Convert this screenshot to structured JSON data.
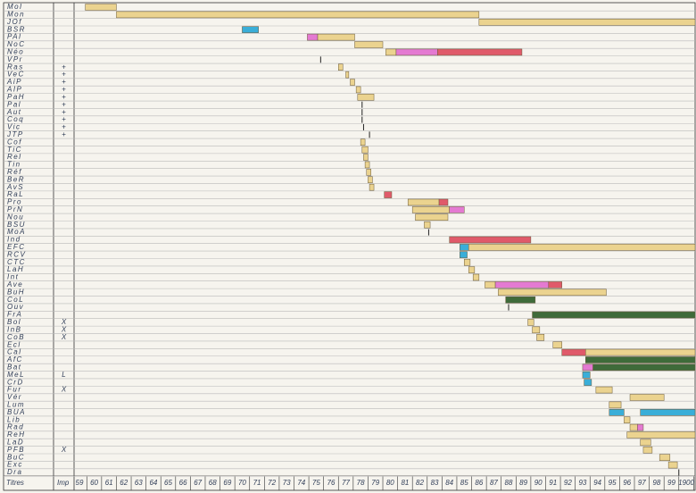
{
  "chart_data": {
    "type": "timeline",
    "row_header": "Titres",
    "imp_header": "Imp",
    "xlim": [
      1858.7,
      1900.6
    ],
    "xticks": [
      {
        "value": 1859,
        "label": "59"
      },
      {
        "value": 1860,
        "label": "60"
      },
      {
        "value": 1861,
        "label": "61"
      },
      {
        "value": 1862,
        "label": "62"
      },
      {
        "value": 1863,
        "label": "63"
      },
      {
        "value": 1864,
        "label": "64"
      },
      {
        "value": 1865,
        "label": "65"
      },
      {
        "value": 1866,
        "label": "66"
      },
      {
        "value": 1867,
        "label": "67"
      },
      {
        "value": 1868,
        "label": "68"
      },
      {
        "value": 1869,
        "label": "69"
      },
      {
        "value": 1870,
        "label": "70"
      },
      {
        "value": 1871,
        "label": "71"
      },
      {
        "value": 1872,
        "label": "72"
      },
      {
        "value": 1873,
        "label": "73"
      },
      {
        "value": 1874,
        "label": "74"
      },
      {
        "value": 1875,
        "label": "75"
      },
      {
        "value": 1876,
        "label": "76"
      },
      {
        "value": 1877,
        "label": "77"
      },
      {
        "value": 1878,
        "label": "78"
      },
      {
        "value": 1879,
        "label": "79"
      },
      {
        "value": 1880,
        "label": "80"
      },
      {
        "value": 1881,
        "label": "81"
      },
      {
        "value": 1882,
        "label": "82"
      },
      {
        "value": 1883,
        "label": "83"
      },
      {
        "value": 1884,
        "label": "84"
      },
      {
        "value": 1885,
        "label": "85"
      },
      {
        "value": 1886,
        "label": "86"
      },
      {
        "value": 1887,
        "label": "87"
      },
      {
        "value": 1888,
        "label": "88"
      },
      {
        "value": 1889,
        "label": "89"
      },
      {
        "value": 1890,
        "label": "90"
      },
      {
        "value": 1891,
        "label": "91"
      },
      {
        "value": 1892,
        "label": "92"
      },
      {
        "value": 1893,
        "label": "93"
      },
      {
        "value": 1894,
        "label": "94"
      },
      {
        "value": 1895,
        "label": "95"
      },
      {
        "value": 1896,
        "label": "96"
      },
      {
        "value": 1897,
        "label": "97"
      },
      {
        "value": 1898,
        "label": "98"
      },
      {
        "value": 1899,
        "label": "99"
      },
      1900
    ],
    "rows": [
      {
        "name": "Mol",
        "segments": [
          {
            "start": 1859.4,
            "end": 1861.5,
            "color": "#ebd38f"
          }
        ]
      },
      {
        "name": "Mon",
        "segments": [
          {
            "start": 1861.5,
            "end": 1886.0,
            "color": "#ebd38f"
          }
        ]
      },
      {
        "name": "JOf",
        "segments": [
          {
            "start": 1886.0,
            "end": 1900.6,
            "color": "#ebd38f"
          }
        ]
      },
      {
        "name": "BSR",
        "segments": [
          {
            "start": 1870.0,
            "end": 1871.1,
            "color": "#3aaed8"
          }
        ]
      },
      {
        "name": "PAl",
        "segments": [
          {
            "start": 1874.4,
            "end": 1875.1,
            "color": "#e47ad2"
          },
          {
            "start": 1875.1,
            "end": 1877.6,
            "color": "#ebd38f"
          }
        ]
      },
      {
        "name": "NoC",
        "segments": [
          {
            "start": 1877.6,
            "end": 1879.5,
            "color": "#ebd38f"
          }
        ]
      },
      {
        "name": "Néo",
        "segments": [
          {
            "start": 1879.7,
            "end": 1880.4,
            "color": "#ebd38f"
          },
          {
            "start": 1880.4,
            "end": 1883.2,
            "color": "#e47ad2"
          },
          {
            "start": 1883.2,
            "end": 1888.9,
            "color": "#e05a6a"
          }
        ]
      },
      {
        "name": "VPr",
        "segments": [
          {
            "start": 1875.3,
            "end": 1875.3,
            "color": "#222222"
          }
        ]
      },
      {
        "name": "Ras",
        "imp": "+",
        "segments": [
          {
            "start": 1876.5,
            "end": 1876.8,
            "color": "#ebd38f"
          }
        ]
      },
      {
        "name": "VeC",
        "imp": "+",
        "segments": [
          {
            "start": 1877.0,
            "end": 1877.2,
            "color": "#ebd38f"
          }
        ]
      },
      {
        "name": "AiP",
        "imp": "+",
        "segments": [
          {
            "start": 1877.3,
            "end": 1877.6,
            "color": "#ebd38f"
          }
        ]
      },
      {
        "name": "AIP",
        "imp": "+",
        "segments": [
          {
            "start": 1877.7,
            "end": 1878.0,
            "color": "#ebd38f"
          }
        ]
      },
      {
        "name": "PaH",
        "imp": "+",
        "segments": [
          {
            "start": 1877.8,
            "end": 1878.9,
            "color": "#ebd38f"
          }
        ]
      },
      {
        "name": "Pal",
        "imp": "+",
        "segments": [
          {
            "start": 1878.1,
            "end": 1878.1,
            "color": "#222222"
          }
        ]
      },
      {
        "name": "Aut",
        "imp": "+",
        "segments": [
          {
            "start": 1878.1,
            "end": 1878.1,
            "color": "#222222"
          }
        ]
      },
      {
        "name": "Coq",
        "imp": "+",
        "segments": [
          {
            "start": 1878.1,
            "end": 1878.1,
            "color": "#222222"
          }
        ]
      },
      {
        "name": "Vic",
        "imp": "+",
        "segments": [
          {
            "start": 1878.2,
            "end": 1878.2,
            "color": "#222222"
          }
        ]
      },
      {
        "name": "JTP",
        "imp": "+",
        "segments": [
          {
            "start": 1878.6,
            "end": 1878.6,
            "color": "#222222"
          }
        ]
      },
      {
        "name": "Cof",
        "segments": [
          {
            "start": 1878.0,
            "end": 1878.3,
            "color": "#ebd38f"
          }
        ]
      },
      {
        "name": "TiC",
        "segments": [
          {
            "start": 1878.1,
            "end": 1878.5,
            "color": "#ebd38f"
          }
        ]
      },
      {
        "name": "Rel",
        "segments": [
          {
            "start": 1878.2,
            "end": 1878.5,
            "color": "#ebd38f"
          }
        ]
      },
      {
        "name": "Tin",
        "segments": [
          {
            "start": 1878.3,
            "end": 1878.6,
            "color": "#ebd38f"
          }
        ]
      },
      {
        "name": "Réf",
        "segments": [
          {
            "start": 1878.4,
            "end": 1878.7,
            "color": "#ebd38f"
          }
        ]
      },
      {
        "name": "BeR",
        "segments": [
          {
            "start": 1878.5,
            "end": 1878.8,
            "color": "#ebd38f"
          }
        ]
      },
      {
        "name": "AvS",
        "segments": [
          {
            "start": 1878.6,
            "end": 1878.9,
            "color": "#ebd38f"
          }
        ]
      },
      {
        "name": "RaL",
        "segments": [
          {
            "start": 1879.6,
            "end": 1880.1,
            "color": "#e05a6a"
          }
        ]
      },
      {
        "name": "Pro",
        "segments": [
          {
            "start": 1881.2,
            "end": 1883.3,
            "color": "#ebd38f"
          },
          {
            "start": 1883.3,
            "end": 1883.9,
            "color": "#e05a6a"
          }
        ]
      },
      {
        "name": "PrN",
        "segments": [
          {
            "start": 1881.5,
            "end": 1884.0,
            "color": "#ebd38f"
          },
          {
            "start": 1884.0,
            "end": 1885.0,
            "color": "#e47ad2"
          }
        ]
      },
      {
        "name": "Nou",
        "segments": [
          {
            "start": 1881.7,
            "end": 1883.9,
            "color": "#ebd38f"
          }
        ]
      },
      {
        "name": "BSU",
        "segments": [
          {
            "start": 1882.3,
            "end": 1882.7,
            "color": "#ebd38f"
          }
        ]
      },
      {
        "name": "MoA",
        "segments": [
          {
            "start": 1882.6,
            "end": 1882.6,
            "color": "#222222"
          }
        ]
      },
      {
        "name": "Ind",
        "segments": [
          {
            "start": 1884.0,
            "end": 1889.5,
            "color": "#e05a6a"
          }
        ]
      },
      {
        "name": "EFC",
        "segments": [
          {
            "start": 1884.7,
            "end": 1885.3,
            "color": "#3aaed8"
          },
          {
            "start": 1885.3,
            "end": 1900.6,
            "color": "#ebd38f"
          }
        ]
      },
      {
        "name": "RCV",
        "segments": [
          {
            "start": 1884.7,
            "end": 1885.2,
            "color": "#3aaed8"
          }
        ]
      },
      {
        "name": "CTC",
        "segments": [
          {
            "start": 1885.0,
            "end": 1885.4,
            "color": "#ebd38f"
          }
        ]
      },
      {
        "name": "LaH",
        "segments": [
          {
            "start": 1885.3,
            "end": 1885.7,
            "color": "#ebd38f"
          }
        ]
      },
      {
        "name": "Int",
        "segments": [
          {
            "start": 1885.6,
            "end": 1886.0,
            "color": "#ebd38f"
          }
        ]
      },
      {
        "name": "Ave",
        "segments": [
          {
            "start": 1886.4,
            "end": 1887.1,
            "color": "#ebd38f"
          },
          {
            "start": 1887.1,
            "end": 1890.7,
            "color": "#e47ad2"
          },
          {
            "start": 1890.7,
            "end": 1891.6,
            "color": "#e05a6a"
          }
        ]
      },
      {
        "name": "BuH",
        "segments": [
          {
            "start": 1887.3,
            "end": 1894.6,
            "color": "#ebd38f"
          }
        ]
      },
      {
        "name": "CoL",
        "segments": [
          {
            "start": 1887.8,
            "end": 1889.8,
            "color": "#3f6b3a"
          }
        ]
      },
      {
        "name": "Ouv",
        "segments": [
          {
            "start": 1888.0,
            "end": 1888.0,
            "color": "#222222"
          }
        ]
      },
      {
        "name": "FrA",
        "segments": [
          {
            "start": 1889.6,
            "end": 1900.6,
            "color": "#3f6b3a"
          }
        ]
      },
      {
        "name": "Bol",
        "imp": "X",
        "segments": [
          {
            "start": 1889.3,
            "end": 1889.7,
            "color": "#ebd38f"
          }
        ]
      },
      {
        "name": "InB",
        "imp": "X",
        "segments": [
          {
            "start": 1889.6,
            "end": 1890.1,
            "color": "#ebd38f"
          }
        ]
      },
      {
        "name": "CoB",
        "imp": "X",
        "segments": [
          {
            "start": 1889.9,
            "end": 1890.4,
            "color": "#ebd38f"
          }
        ]
      },
      {
        "name": "Ecl",
        "segments": [
          {
            "start": 1891.0,
            "end": 1891.6,
            "color": "#ebd38f"
          }
        ]
      },
      {
        "name": "Cal",
        "segments": [
          {
            "start": 1891.6,
            "end": 1893.2,
            "color": "#e05a6a"
          },
          {
            "start": 1893.2,
            "end": 1900.6,
            "color": "#ebd38f"
          }
        ]
      },
      {
        "name": "AfC",
        "segments": [
          {
            "start": 1893.2,
            "end": 1900.6,
            "color": "#3f6b3a"
          }
        ]
      },
      {
        "name": "Bat",
        "segments": [
          {
            "start": 1893.0,
            "end": 1893.7,
            "color": "#e47ad2"
          },
          {
            "start": 1893.7,
            "end": 1900.6,
            "color": "#3f6b3a"
          }
        ]
      },
      {
        "name": "MeL",
        "imp": "L",
        "segments": [
          {
            "start": 1893.0,
            "end": 1893.5,
            "color": "#3aaed8"
          }
        ]
      },
      {
        "name": "CrD",
        "segments": [
          {
            "start": 1893.1,
            "end": 1893.6,
            "color": "#3aaed8"
          }
        ]
      },
      {
        "name": "Fur",
        "imp": "X",
        "segments": [
          {
            "start": 1893.9,
            "end": 1895.0,
            "color": "#ebd38f"
          }
        ]
      },
      {
        "name": "Vér",
        "segments": [
          {
            "start": 1896.2,
            "end": 1898.5,
            "color": "#ebd38f"
          }
        ]
      },
      {
        "name": "Lum",
        "segments": [
          {
            "start": 1894.8,
            "end": 1895.6,
            "color": "#ebd38f"
          }
        ]
      },
      {
        "name": "BUA",
        "segments": [
          {
            "start": 1894.8,
            "end": 1895.8,
            "color": "#3aaed8"
          },
          {
            "start": 1896.9,
            "end": 1900.6,
            "color": "#3aaed8"
          }
        ]
      },
      {
        "name": "Lib",
        "segments": [
          {
            "start": 1895.8,
            "end": 1896.2,
            "color": "#ebd38f"
          }
        ]
      },
      {
        "name": "Rad",
        "segments": [
          {
            "start": 1896.2,
            "end": 1896.7,
            "color": "#ebd38f"
          },
          {
            "start": 1896.7,
            "end": 1897.1,
            "color": "#e47ad2"
          }
        ]
      },
      {
        "name": "ReH",
        "segments": [
          {
            "start": 1896.0,
            "end": 1900.6,
            "color": "#ebd38f"
          }
        ]
      },
      {
        "name": "LaD",
        "segments": [
          {
            "start": 1896.9,
            "end": 1897.6,
            "color": "#ebd38f"
          }
        ]
      },
      {
        "name": "PFB",
        "imp": "X",
        "segments": [
          {
            "start": 1897.1,
            "end": 1897.7,
            "color": "#ebd38f"
          }
        ]
      },
      {
        "name": "BuC",
        "segments": [
          {
            "start": 1898.2,
            "end": 1898.9,
            "color": "#ebd38f"
          }
        ]
      },
      {
        "name": "Exc",
        "segments": [
          {
            "start": 1898.8,
            "end": 1899.4,
            "color": "#ebd38f"
          }
        ]
      },
      {
        "name": "Dra",
        "segments": [
          {
            "start": 1899.5,
            "end": 1899.5,
            "color": "#222222"
          }
        ]
      }
    ]
  }
}
